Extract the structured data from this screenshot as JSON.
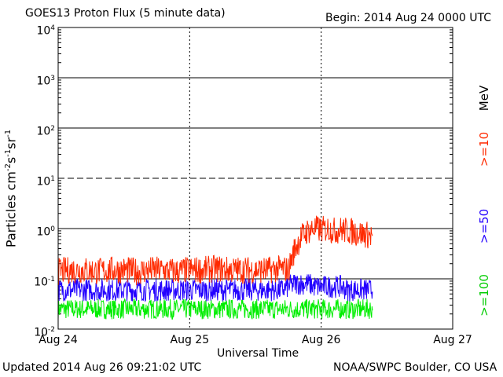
{
  "header": {
    "title": "GOES13 Proton Flux (5 minute data)",
    "begin": "Begin: 2014 Aug 24 0000 UTC"
  },
  "footer": {
    "updated": "Updated 2014 Aug 26 09:21:02 UTC",
    "credit": "NOAA/SWPC Boulder, CO USA"
  },
  "axes": {
    "ylabel_main": "Particles cm",
    "ylabel_rest": "s",
    "xlabel": "Universal Time"
  },
  "legend": {
    "unit": "MeV",
    "items": [
      {
        "label": ">=10",
        "color": "#ff2a00"
      },
      {
        "label": ">=50",
        "color": "#2200ff"
      },
      {
        "label": ">=100",
        "color": "#00ee00"
      }
    ]
  },
  "chart_data": {
    "type": "line",
    "title": "GOES13 Proton Flux (5 minute data)",
    "xlabel": "Universal Time",
    "ylabel": "Particles cm-2 s-1 sr-1",
    "yscale": "log",
    "ylim": [
      0.01,
      10000
    ],
    "xlim": [
      0,
      3
    ],
    "x_unit": "days since 2014 Aug 24 0000 UTC",
    "x_ticks": [
      {
        "value": 0,
        "label": "Aug 24"
      },
      {
        "value": 1,
        "label": "Aug 25"
      },
      {
        "value": 2,
        "label": "Aug 26"
      },
      {
        "value": 3,
        "label": "Aug 27"
      }
    ],
    "y_ticks": [
      {
        "exp": "-2",
        "value": 0.01
      },
      {
        "exp": "-1",
        "value": 0.1
      },
      {
        "exp": "0",
        "value": 1
      },
      {
        "exp": "1",
        "value": 10
      },
      {
        "exp": "2",
        "value": 100
      },
      {
        "exp": "3",
        "value": 1000
      },
      {
        "exp": "4",
        "value": 10000
      }
    ],
    "solid_gridlines": [
      0.1,
      1,
      100,
      1000
    ],
    "dashed_gridlines": [
      10
    ],
    "x": [
      0.0,
      0.1,
      0.2,
      0.3,
      0.4,
      0.5,
      0.6,
      0.7,
      0.8,
      0.9,
      1.0,
      1.1,
      1.2,
      1.3,
      1.4,
      1.5,
      1.6,
      1.7,
      1.75,
      1.8,
      1.85,
      1.9,
      1.95,
      2.0,
      2.05,
      2.1,
      2.15,
      2.2,
      2.25,
      2.3,
      2.35,
      2.39
    ],
    "series": [
      {
        "name": ">=10",
        "color": "#ff2a00",
        "values": [
          0.14,
          0.15,
          0.15,
          0.14,
          0.15,
          0.15,
          0.14,
          0.15,
          0.15,
          0.14,
          0.15,
          0.15,
          0.16,
          0.15,
          0.15,
          0.15,
          0.15,
          0.16,
          0.15,
          0.4,
          0.7,
          0.9,
          1.0,
          0.95,
          1.0,
          0.9,
          0.95,
          0.9,
          0.85,
          0.8,
          0.75,
          0.7
        ]
      },
      {
        "name": ">=50",
        "color": "#2200ff",
        "values": [
          0.06,
          0.06,
          0.06,
          0.06,
          0.06,
          0.06,
          0.06,
          0.06,
          0.06,
          0.06,
          0.06,
          0.06,
          0.06,
          0.06,
          0.06,
          0.06,
          0.06,
          0.06,
          0.07,
          0.08,
          0.08,
          0.08,
          0.07,
          0.07,
          0.07,
          0.07,
          0.07,
          0.06,
          0.06,
          0.06,
          0.06,
          0.06
        ]
      },
      {
        "name": ">=100",
        "color": "#00ee00",
        "values": [
          0.025,
          0.025,
          0.025,
          0.025,
          0.025,
          0.025,
          0.025,
          0.025,
          0.025,
          0.025,
          0.025,
          0.025,
          0.025,
          0.025,
          0.025,
          0.025,
          0.025,
          0.025,
          0.025,
          0.025,
          0.025,
          0.025,
          0.025,
          0.025,
          0.025,
          0.025,
          0.025,
          0.025,
          0.025,
          0.025,
          0.025,
          0.025
        ]
      }
    ],
    "grid": true,
    "legend_position": "right, rotated vertical"
  }
}
